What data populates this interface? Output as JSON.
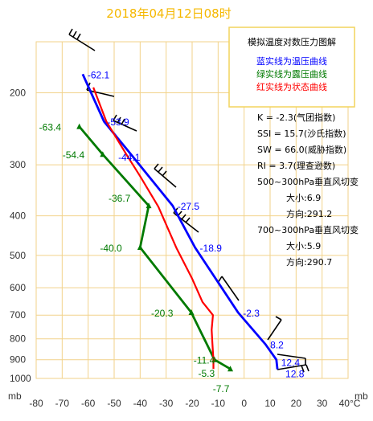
{
  "title": "2018年04月12日08时",
  "legend": {
    "heading": "模拟温度对数压力图解",
    "lines": [
      {
        "text": "蓝实线为温压曲线",
        "color": "#0000ff"
      },
      {
        "text": "绿实线为露压曲线",
        "color": "#007a00"
      },
      {
        "text": "红实线为状态曲线",
        "color": "#ff0000"
      }
    ],
    "border_color": "#f2d45c"
  },
  "indices": [
    "K = -2.3(气团指数)",
    "SSI = 15.7(沙氏指数)",
    "SW = 66.0(威胁指数)",
    "RI = 3.7(理查逊数)",
    "500~300hPa垂直风切变",
    "大小:6.9",
    "方向:291.2",
    "700~300hPa垂直风切变",
    "大小:5.9",
    "方向:290.7"
  ],
  "chart_data": {
    "type": "line",
    "x_unit": "°C",
    "y_unit": "mb",
    "y_scale": "log",
    "y_reversed": true,
    "xlim": [
      -80,
      40
    ],
    "ylim": [
      1000,
      150
    ],
    "x_ticks": [
      -80,
      -70,
      -60,
      -50,
      -40,
      -30,
      -20,
      -10,
      0,
      10,
      20,
      30,
      40
    ],
    "x_tick_labels": [
      "-80",
      "-70",
      "-60",
      "-50",
      "-40",
      "-30",
      "-20",
      "-10",
      "0",
      "10",
      "20",
      "30",
      "40°C"
    ],
    "y_ticks": [
      200,
      300,
      400,
      500,
      600,
      700,
      800,
      900,
      1000
    ],
    "y_tick_labels": [
      "200",
      "300",
      "400",
      "500",
      "600",
      "700",
      "800",
      "900",
      "1000"
    ],
    "grid": true,
    "grid_color": "#f2d28a",
    "series": [
      {
        "name": "温压曲线",
        "color": "#0000ff",
        "points": [
          [
            -62.1,
            180
          ],
          [
            -53.9,
            235
          ],
          [
            -44.1,
            280
          ],
          [
            -27.5,
            378
          ],
          [
            -18.9,
            478
          ],
          [
            -2.3,
            690
          ],
          [
            8.2,
            825
          ],
          [
            12.4,
            900
          ],
          [
            12.8,
            950
          ]
        ],
        "labels": [
          "-62.1",
          "-53.9",
          "-44.1",
          "-27.5",
          "-18.9",
          "-2.3",
          "8.2",
          "12.4",
          "12.8"
        ]
      },
      {
        "name": "露压曲线",
        "color": "#007a00",
        "points": [
          [
            -63.4,
            242
          ],
          [
            -54.4,
            283
          ],
          [
            -36.7,
            378
          ],
          [
            -40.0,
            478
          ],
          [
            -20.3,
            690
          ],
          [
            -11.4,
            900
          ],
          [
            -5.3,
            948
          ]
        ],
        "labels": [
          "-63.4",
          "-54.4",
          "-36.7",
          "-40.0",
          "-20.3",
          "-11.4",
          "-5.3"
        ]
      },
      {
        "name": "状态曲线",
        "color": "#ff0000",
        "points": [
          [
            -58,
            194
          ],
          [
            -53,
            235
          ],
          [
            -45,
            285
          ],
          [
            -40,
            320
          ],
          [
            -33,
            380
          ],
          [
            -26,
            480
          ],
          [
            -20,
            570
          ],
          [
            -16,
            650
          ],
          [
            -12,
            700
          ],
          [
            -12.5,
            760
          ],
          [
            -12.2,
            820
          ],
          [
            -11.8,
            900
          ],
          [
            -11.8,
            948
          ]
        ]
      }
    ],
    "annotations": [
      {
        "text": "-7.7",
        "x": -7.7,
        "y": 1000,
        "color": "#007a00"
      }
    ]
  }
}
